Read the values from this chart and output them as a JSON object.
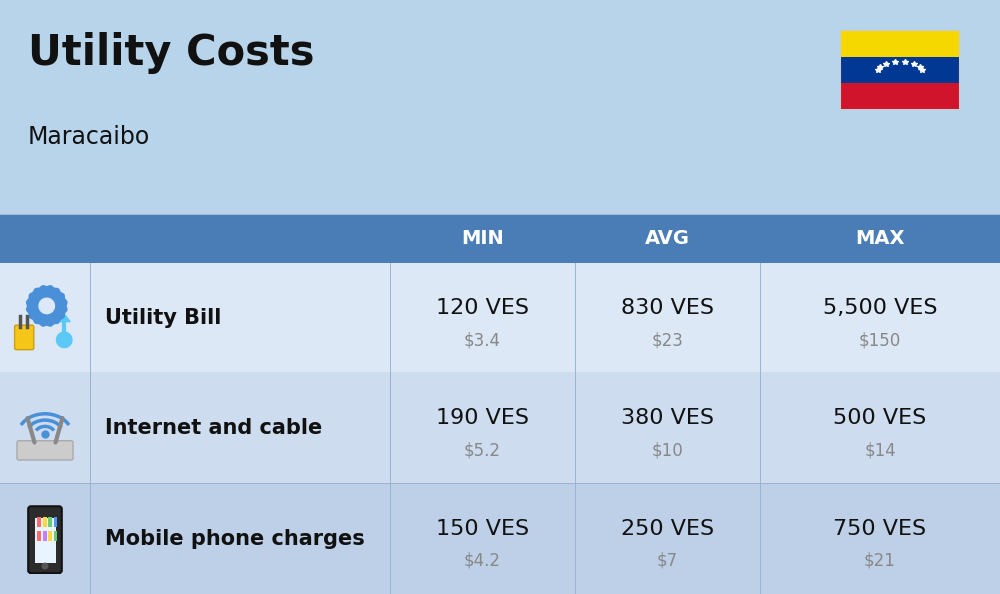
{
  "title": "Utility Costs",
  "subtitle": "Maracaibo",
  "background_color": "#b8d4ea",
  "table_header_color": "#4a7db5",
  "table_header_text_color": "#ffffff",
  "row_colors": [
    "#dce8f5",
    "#cddcee",
    "#bdd0e8"
  ],
  "col_headers": [
    "MIN",
    "AVG",
    "MAX"
  ],
  "rows": [
    {
      "label": "Utility Bill",
      "min_ves": "120 VES",
      "min_usd": "$3.4",
      "avg_ves": "830 VES",
      "avg_usd": "$23",
      "max_ves": "5,500 VES",
      "max_usd": "$150"
    },
    {
      "label": "Internet and cable",
      "min_ves": "190 VES",
      "min_usd": "$5.2",
      "avg_ves": "380 VES",
      "avg_usd": "$10",
      "max_ves": "500 VES",
      "max_usd": "$14"
    },
    {
      "label": "Mobile phone charges",
      "min_ves": "150 VES",
      "min_usd": "$4.2",
      "avg_ves": "250 VES",
      "avg_usd": "$7",
      "max_ves": "750 VES",
      "max_usd": "$21"
    }
  ],
  "title_fontsize": 30,
  "subtitle_fontsize": 17,
  "header_fontsize": 14,
  "data_ves_fontsize": 16,
  "data_usd_fontsize": 12,
  "label_fontsize": 15,
  "flag_colors": [
    "#f5d800",
    "#003893",
    "#cf142b"
  ],
  "divider_color": "#9ab5d0",
  "text_dark": "#111111",
  "text_gray": "#888888"
}
